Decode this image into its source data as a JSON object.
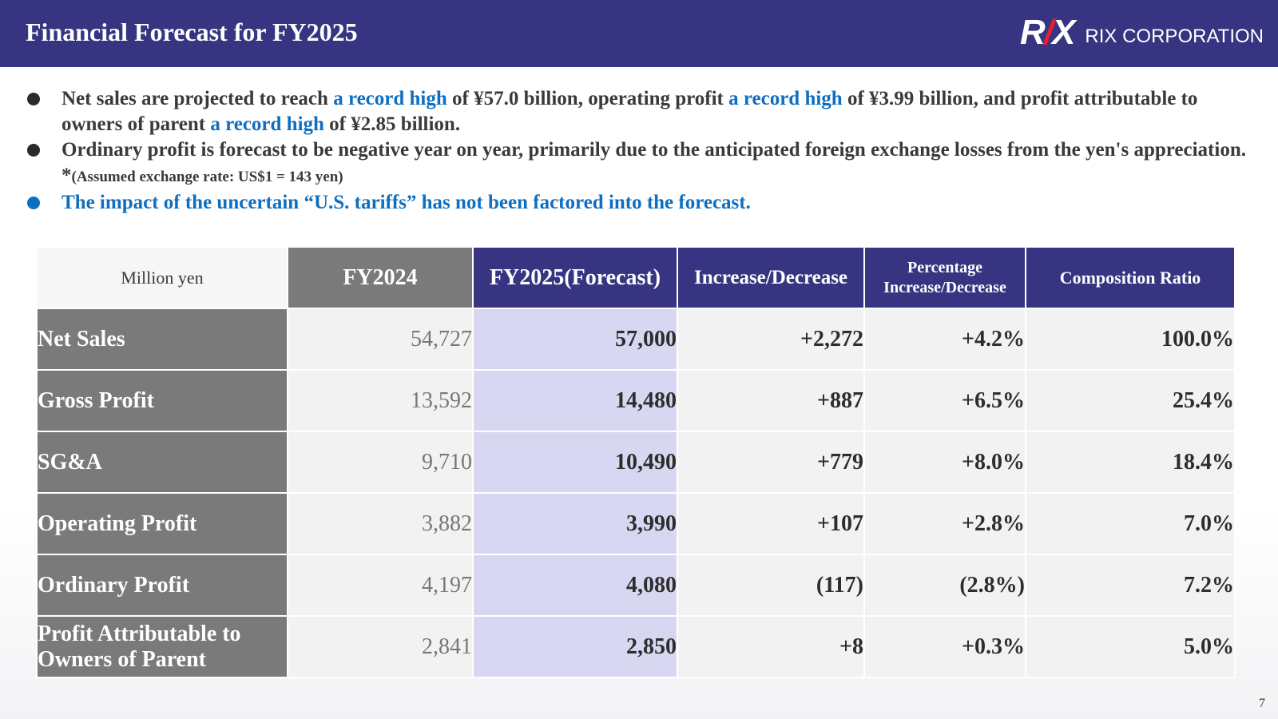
{
  "header": {
    "title": "Financial Forecast for FY2025",
    "logo_mark": "RIX",
    "logo_text": "RIX CORPORATION",
    "background_color": "#373581"
  },
  "bullets": [
    {
      "parts": [
        {
          "text": "Net sales are projected to reach ",
          "highlight": false
        },
        {
          "text": "a record high",
          "highlight": true
        },
        {
          "text": " of ¥57.0 billion, operating profit ",
          "highlight": false
        },
        {
          "text": "a record high",
          "highlight": true
        },
        {
          "text": " of ¥3.99 billion, and profit attributable to owners of parent ",
          "highlight": false
        },
        {
          "text": "a record high",
          "highlight": true
        },
        {
          "text": " of ¥2.85 billion.",
          "highlight": false
        }
      ]
    },
    {
      "main": "Ordinary profit is forecast to be negative year on year, primarily due to the anticipated foreign exchange losses from the yen's appreciation. *",
      "note": "(Assumed exchange rate: US$1 = 143 yen)"
    },
    {
      "main": "The impact of the uncertain “U.S. tariffs” has not been factored into the forecast."
    }
  ],
  "table": {
    "unit": "Million yen",
    "headers": {
      "fy2024": "FY2024",
      "fy2025": "FY2025(Forecast)",
      "increase": "Increase/Decrease",
      "pct_line1": "Percentage",
      "pct_line2": "Increase/Decrease",
      "composition": "Composition Ratio"
    },
    "rows": [
      {
        "label": "Net Sales",
        "fy2024": "54,727",
        "fy2025": "57,000",
        "increase": "+2,272",
        "pct": "+4.2%",
        "composition": "100.0%"
      },
      {
        "label": "Gross Profit",
        "fy2024": "13,592",
        "fy2025": "14,480",
        "increase": "+887",
        "pct": "+6.5%",
        "composition": "25.4%"
      },
      {
        "label": "SG&A",
        "fy2024": "9,710",
        "fy2025": "10,490",
        "increase": "+779",
        "pct": "+8.0%",
        "composition": "18.4%"
      },
      {
        "label": "Operating Profit",
        "fy2024": "3,882",
        "fy2025": "3,990",
        "increase": "+107",
        "pct": "+2.8%",
        "composition": "7.0%"
      },
      {
        "label": "Ordinary Profit",
        "fy2024": "4,197",
        "fy2025": "4,080",
        "increase": "(117)",
        "pct": "(2.8%)",
        "composition": "7.2%"
      },
      {
        "label": "Profit Attributable to Owners of Parent",
        "fy2024": "2,841",
        "fy2025": "2,850",
        "increase": "+8",
        "pct": "+0.3%",
        "composition": "5.0%"
      }
    ]
  },
  "page_number": "7"
}
